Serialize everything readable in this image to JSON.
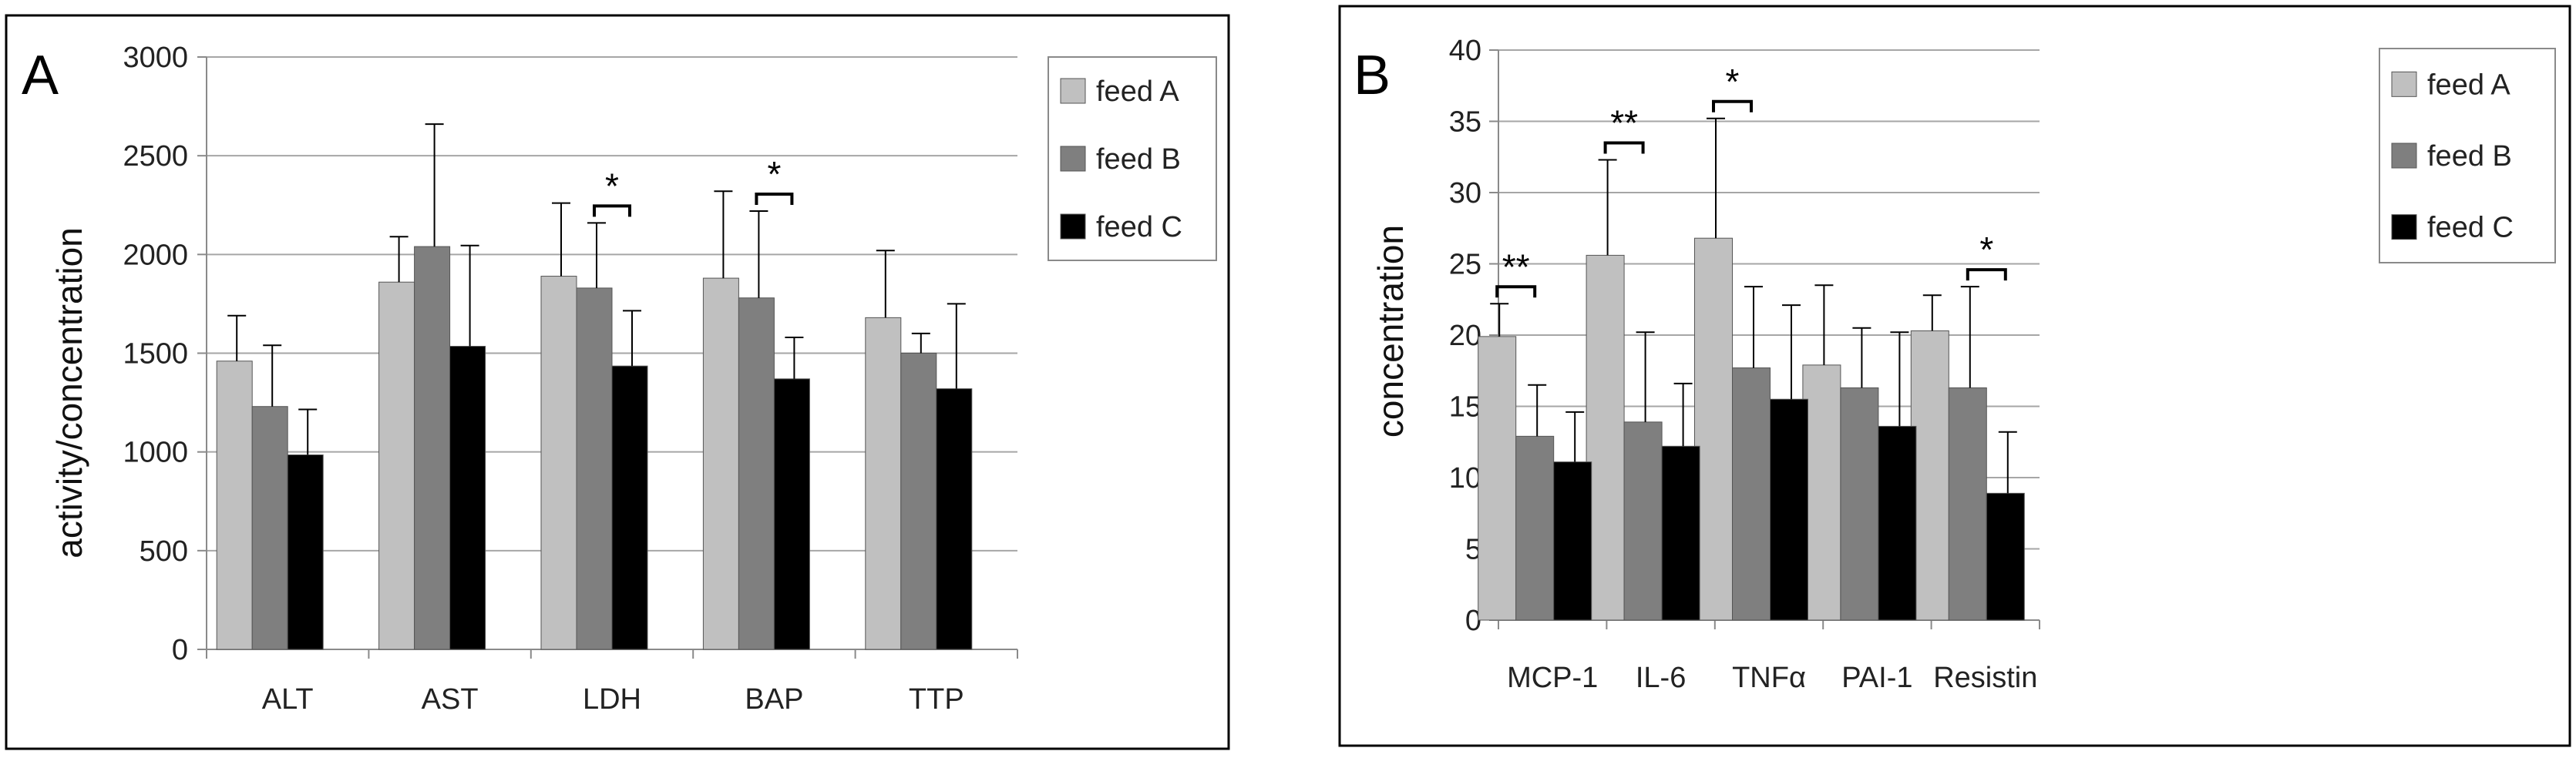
{
  "chart_data": [
    {
      "type": "bar",
      "panel_label": "A",
      "ylabel": "activity/concentration",
      "xlabel": "",
      "ylim": [
        0,
        3000
      ],
      "yticks": [
        "0",
        "500",
        "1000",
        "1500",
        "2000",
        "2500",
        "3000"
      ],
      "categories": [
        "ALT",
        "AST",
        "LDH",
        "BAP",
        "TTP"
      ],
      "series": [
        {
          "name": "feed A",
          "color": "#c0c0c0",
          "values": [
            1460,
            1860,
            1890,
            1880,
            1680
          ],
          "errors": [
            230,
            230,
            370,
            440,
            340
          ]
        },
        {
          "name": "feed B",
          "color": "#7f7f7f",
          "values": [
            1230,
            2040,
            1830,
            1780,
            1500
          ],
          "errors": [
            310,
            620,
            330,
            440,
            100
          ]
        },
        {
          "name": "feed C",
          "color": "#000000",
          "values": [
            985,
            1535,
            1435,
            1370,
            1320
          ],
          "errors": [
            230,
            510,
            280,
            210,
            430
          ]
        }
      ],
      "legend_position": "top-right",
      "significance": [
        {
          "category": "LDH",
          "from": "feed B",
          "to": "feed C",
          "label": "*"
        },
        {
          "category": "BAP",
          "from": "feed B",
          "to": "feed C",
          "label": "*"
        }
      ]
    },
    {
      "type": "bar",
      "panel_label": "B",
      "ylabel": "concentration",
      "xlabel": "",
      "ylim": [
        0,
        40
      ],
      "yticks": [
        "0",
        "5",
        "10",
        "15",
        "20",
        "25",
        "30",
        "35",
        "40"
      ],
      "categories": [
        "MCP-1",
        "IL-6",
        "TNFα",
        "PAI-1",
        "Resistin"
      ],
      "series": [
        {
          "name": "feed A",
          "color": "#c0c0c0",
          "values": [
            19.9,
            25.6,
            26.8,
            17.9,
            20.3
          ],
          "errors": [
            2.3,
            6.7,
            8.4,
            5.6,
            2.5
          ]
        },
        {
          "name": "feed B",
          "color": "#7f7f7f",
          "values": [
            12.9,
            13.9,
            17.7,
            16.3,
            16.3
          ],
          "errors": [
            3.6,
            6.3,
            5.7,
            4.2,
            7.1
          ]
        },
        {
          "name": "feed C",
          "color": "#000000",
          "values": [
            11.1,
            12.2,
            15.5,
            13.6,
            8.9
          ],
          "errors": [
            3.5,
            4.4,
            6.6,
            6.6,
            4.3
          ]
        }
      ],
      "legend_position": "top-right",
      "significance": [
        {
          "category": "MCP-1",
          "from": "feed A",
          "to": "feed B",
          "label": "**"
        },
        {
          "category": "IL-6",
          "from": "feed A",
          "to": "feed B",
          "label": "**"
        },
        {
          "category": "TNFα",
          "from": "feed A",
          "to": "feed B",
          "label": "*"
        },
        {
          "category": "Resistin",
          "from": "feed B",
          "to": "feed C",
          "label": "*"
        }
      ]
    }
  ]
}
